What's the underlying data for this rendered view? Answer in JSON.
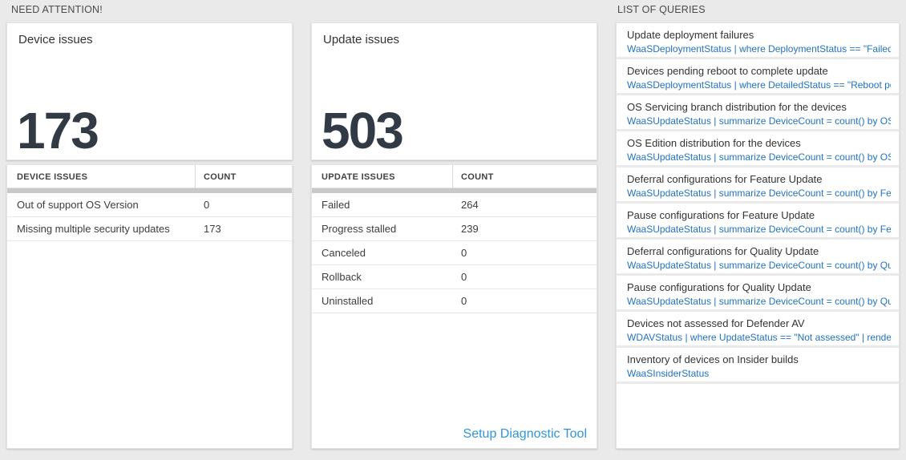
{
  "sections": {
    "need_attention": "NEED ATTENTION!",
    "list_of_queries": "LIST OF QUERIES"
  },
  "cards": [
    {
      "title": "Device issues",
      "count": "173",
      "table": {
        "headers": [
          "DEVICE ISSUES",
          "COUNT"
        ],
        "rows": [
          [
            "Out of support OS Version",
            "0"
          ],
          [
            "Missing multiple security updates",
            "173"
          ]
        ]
      }
    },
    {
      "title": "Update issues",
      "count": "503",
      "table": {
        "headers": [
          "UPDATE ISSUES",
          "COUNT"
        ],
        "rows": [
          [
            "Failed",
            "264"
          ],
          [
            "Progress stalled",
            "239"
          ],
          [
            "Canceled",
            "0"
          ],
          [
            "Rollback",
            "0"
          ],
          [
            "Uninstalled",
            "0"
          ]
        ]
      },
      "footer_link": "Setup Diagnostic Tool"
    }
  ],
  "queries": [
    {
      "title": "Update deployment failures",
      "query": "WaaSDeploymentStatus | where DeploymentStatus == \"Failed\" |..."
    },
    {
      "title": "Devices pending reboot to complete update",
      "query": "WaaSDeploymentStatus | where DetailedStatus == \"Reboot pend..."
    },
    {
      "title": "OS Servicing branch distribution for the devices",
      "query": "WaaSUpdateStatus | summarize DeviceCount = count() by OSSer..."
    },
    {
      "title": "OS Edition distribution for the devices",
      "query": "WaaSUpdateStatus | summarize DeviceCount = count() by OSEdit..."
    },
    {
      "title": "Deferral configurations for Feature Update",
      "query": "WaaSUpdateStatus | summarize DeviceCount = count() by Featur..."
    },
    {
      "title": "Pause configurations for Feature Update",
      "query": "WaaSUpdateStatus | summarize DeviceCount = count() by Featur..."
    },
    {
      "title": "Deferral configurations for Quality Update",
      "query": "WaaSUpdateStatus | summarize DeviceCount = count() by Qualit..."
    },
    {
      "title": "Pause configurations for Quality Update",
      "query": "WaaSUpdateStatus | summarize DeviceCount = count() by Qualit..."
    },
    {
      "title": "Devices not assessed for Defender AV",
      "query": "WDAVStatus | where UpdateStatus == \"Not assessed\" | render ta..."
    },
    {
      "title": "Inventory of devices on Insider builds",
      "query": "WaaSInsiderStatus"
    }
  ],
  "colors": {
    "page_background": "#eaeaea",
    "tile_background": "#ffffff",
    "big_number": "#323a45",
    "scroll_strip": "#c9c9c9",
    "query_link_blue": "#2173c4",
    "footer_link_blue": "#3096d6"
  }
}
